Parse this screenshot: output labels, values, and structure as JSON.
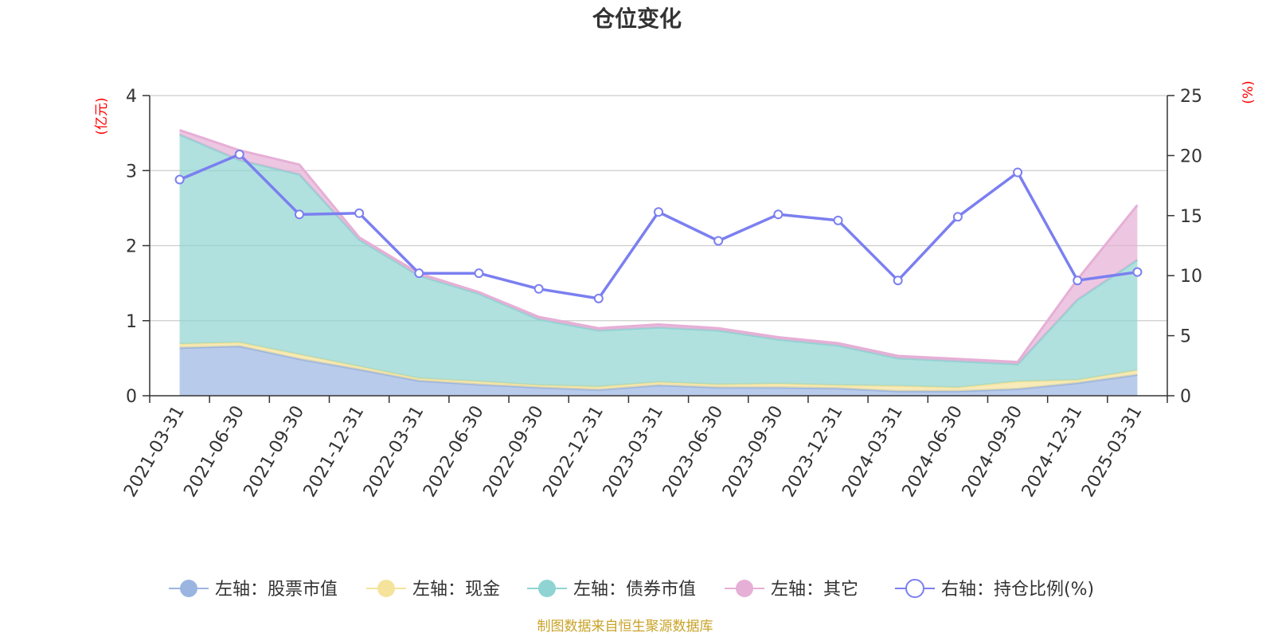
{
  "chart_data": {
    "type": "area",
    "title": "仓位变化",
    "categories": [
      "2021-03-31",
      "2021-06-30",
      "2021-09-30",
      "2021-12-31",
      "2022-03-31",
      "2022-06-30",
      "2022-09-30",
      "2022-12-31",
      "2023-03-31",
      "2023-06-30",
      "2023-09-30",
      "2023-12-31",
      "2024-03-31",
      "2024-06-30",
      "2024-09-30",
      "2024-12-31",
      "2025-03-31"
    ],
    "left_axis": {
      "unit": "(亿元)",
      "ylim": [
        0,
        4
      ],
      "ticks": [
        "0",
        "1",
        "2",
        "3",
        "4"
      ]
    },
    "right_axis": {
      "unit": "(%)",
      "ylim": [
        0,
        25
      ],
      "ticks": [
        "0",
        "5",
        "10",
        "15",
        "20",
        "25"
      ]
    },
    "grid": true,
    "legend_position": "bottom",
    "stacked_series": [
      {
        "name": "左轴：股票市值",
        "color": "#9bb5e1",
        "values": [
          0.64,
          0.66,
          0.49,
          0.35,
          0.2,
          0.15,
          0.11,
          0.08,
          0.14,
          0.11,
          0.11,
          0.1,
          0.06,
          0.06,
          0.09,
          0.17,
          0.28
        ]
      },
      {
        "name": "左轴：现金",
        "color": "#f5e39c",
        "values": [
          0.05,
          0.05,
          0.06,
          0.04,
          0.03,
          0.04,
          0.03,
          0.04,
          0.04,
          0.04,
          0.05,
          0.04,
          0.07,
          0.05,
          0.1,
          0.04,
          0.06
        ]
      },
      {
        "name": "左轴：债券市值",
        "color": "#8fd4d2",
        "values": [
          2.79,
          2.43,
          2.4,
          1.69,
          1.37,
          1.17,
          0.88,
          0.75,
          0.73,
          0.72,
          0.59,
          0.53,
          0.37,
          0.35,
          0.23,
          1.07,
          1.47
        ]
      },
      {
        "name": "左轴：其它",
        "color": "#e6afd6",
        "values": [
          0.06,
          0.13,
          0.13,
          0.03,
          0.03,
          0.02,
          0.03,
          0.03,
          0.04,
          0.03,
          0.03,
          0.03,
          0.03,
          0.03,
          0.03,
          0.27,
          0.73
        ]
      }
    ],
    "line_series": {
      "name": "右轴：持仓比例(%)",
      "color": "#7b7ff0",
      "axis": "right",
      "values": [
        18.0,
        20.1,
        15.1,
        15.2,
        10.2,
        10.2,
        8.9,
        8.1,
        15.3,
        12.9,
        15.1,
        14.6,
        9.6,
        14.9,
        18.6,
        9.6,
        10.3
      ]
    },
    "source": "制图数据来自恒生聚源数据库",
    "colors": {
      "axis_unit": "#ff0000",
      "source": "#c9a227",
      "grid": "#cccccc"
    }
  }
}
